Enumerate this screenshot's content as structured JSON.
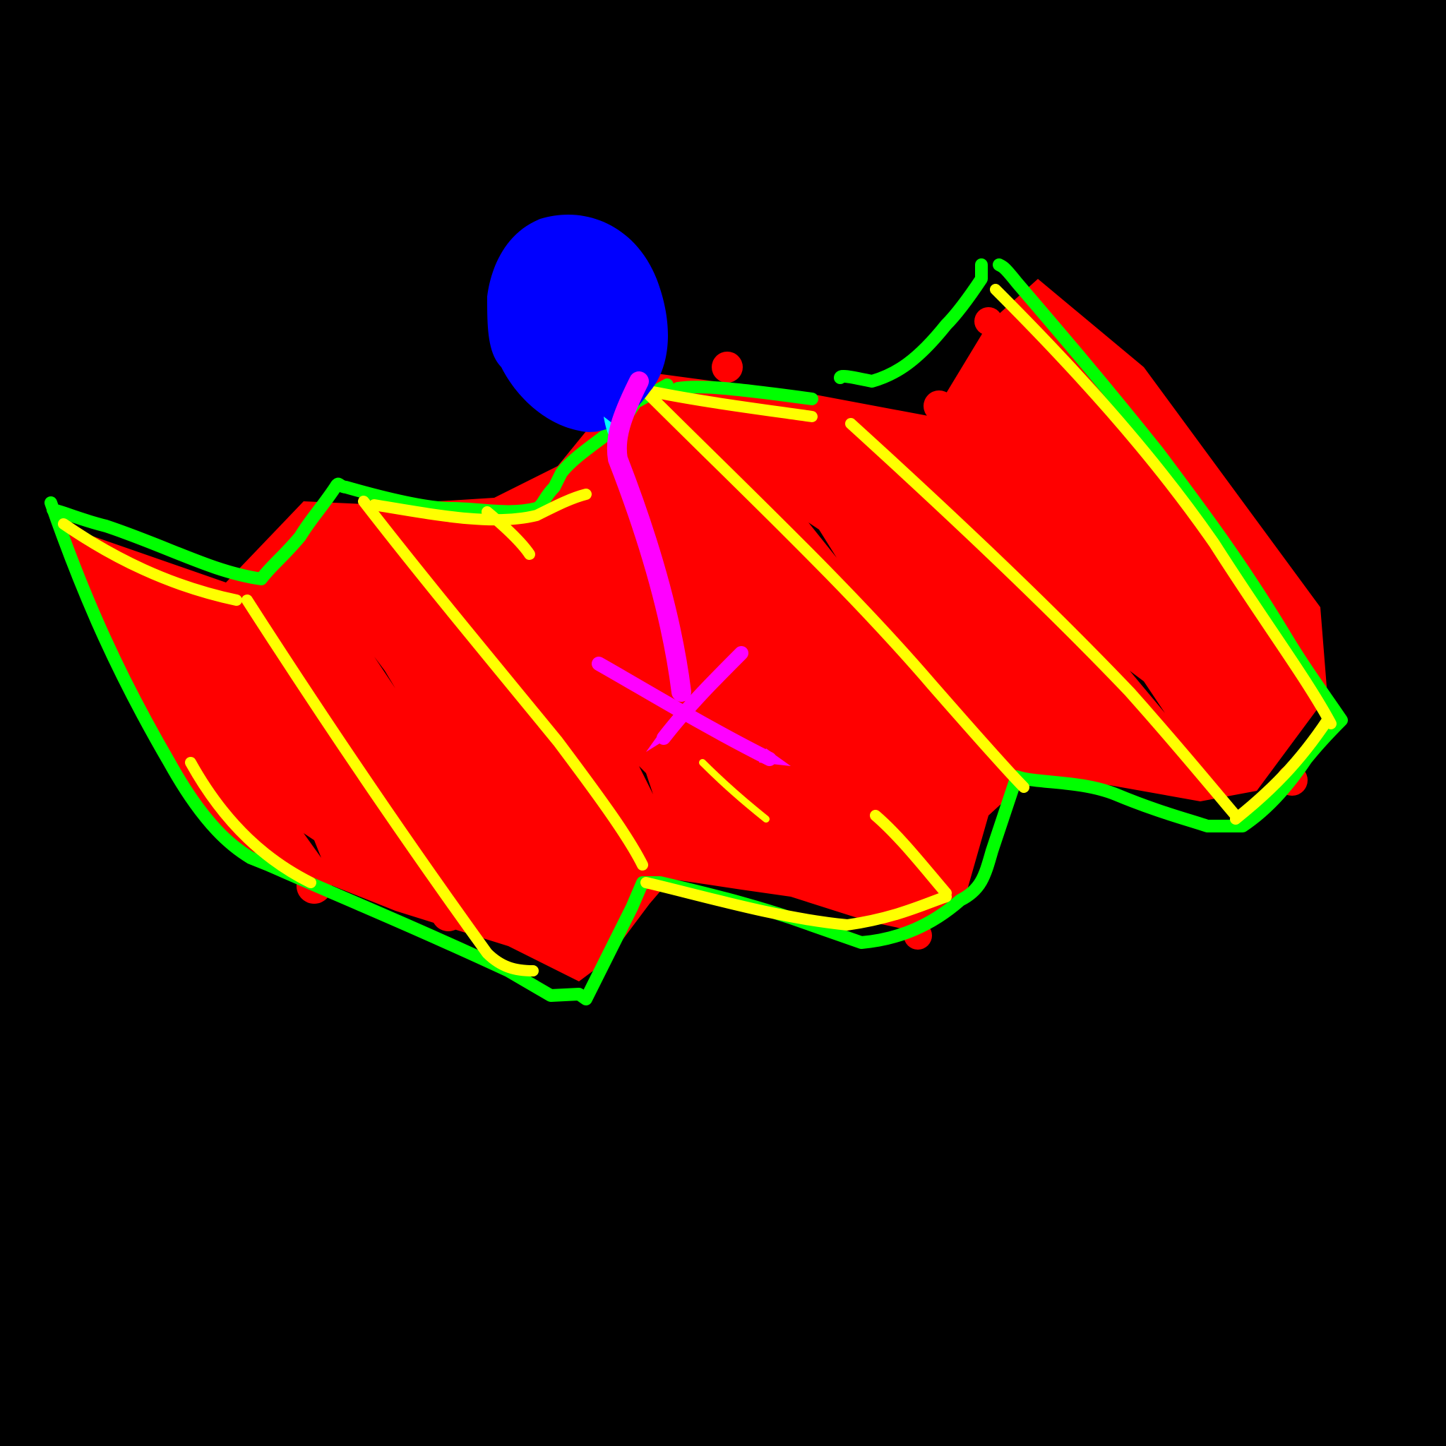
{
  "background_color": "#000000",
  "colors": {
    "fill": "#FF0000",
    "outline": "#00FF00",
    "folds": "#FFFF00",
    "marker": "#FF00FF",
    "head": "#0000FF",
    "highlight": "#00FFFF",
    "tip": "#FFFFFF"
  },
  "drawing": {
    "subject": "folded-map-with-pin-icon",
    "panels": 6
  }
}
